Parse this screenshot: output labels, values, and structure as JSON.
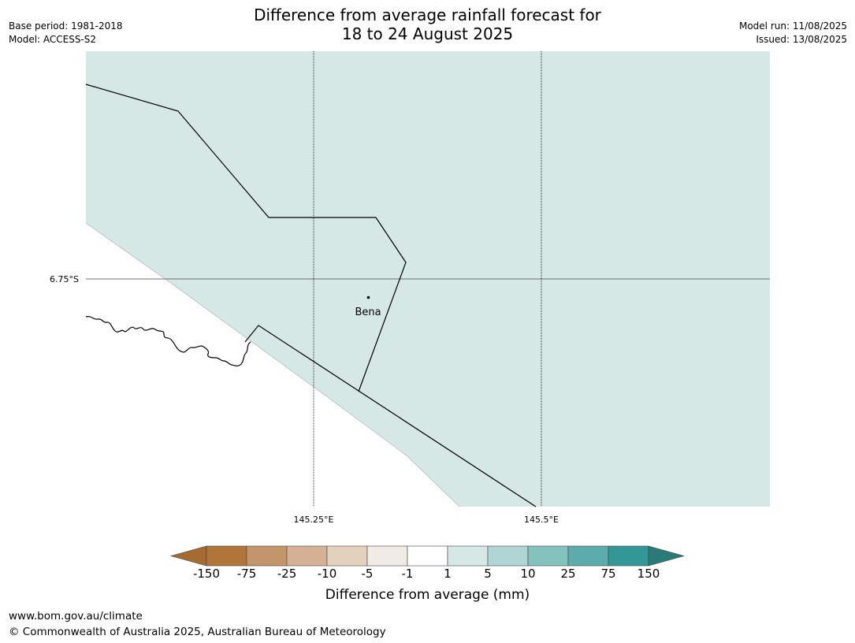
{
  "header": {
    "title_line1": "Difference from average rainfall forecast for",
    "title_line2": "18 to 24 August 2025",
    "base_period": "Base period: 1981-2018",
    "model": "Model: ACCESS-S2",
    "model_run": "Model run: 11/08/2025",
    "issued": "Issued: 13/08/2025"
  },
  "map": {
    "place_label": "Bena",
    "lat_labels": [
      "6.75°S"
    ],
    "lon_labels": [
      "145.25°E",
      "145.5°E"
    ],
    "land_fill_color": "#d5e8e6",
    "ocean_color": "#ffffff"
  },
  "colorbar": {
    "label": "Difference from average (mm)",
    "ticks": [
      "-150",
      "-75",
      "-25",
      "-10",
      "-5",
      "-1",
      "1",
      "5",
      "10",
      "25",
      "75",
      "150"
    ],
    "colors": [
      "#a66b31",
      "#b07538",
      "#c3956a",
      "#d4b193",
      "#e4d1bd",
      "#efebe6",
      "#ffffff",
      "#d5e8e6",
      "#afd6d5",
      "#83c1bd",
      "#5bacaa",
      "#329895",
      "#2a7a78"
    ]
  },
  "footer": {
    "url": "www.bom.gov.au/climate",
    "copyright": "© Commonwealth of Australia 2025, Australian Bureau of Meteorology"
  }
}
